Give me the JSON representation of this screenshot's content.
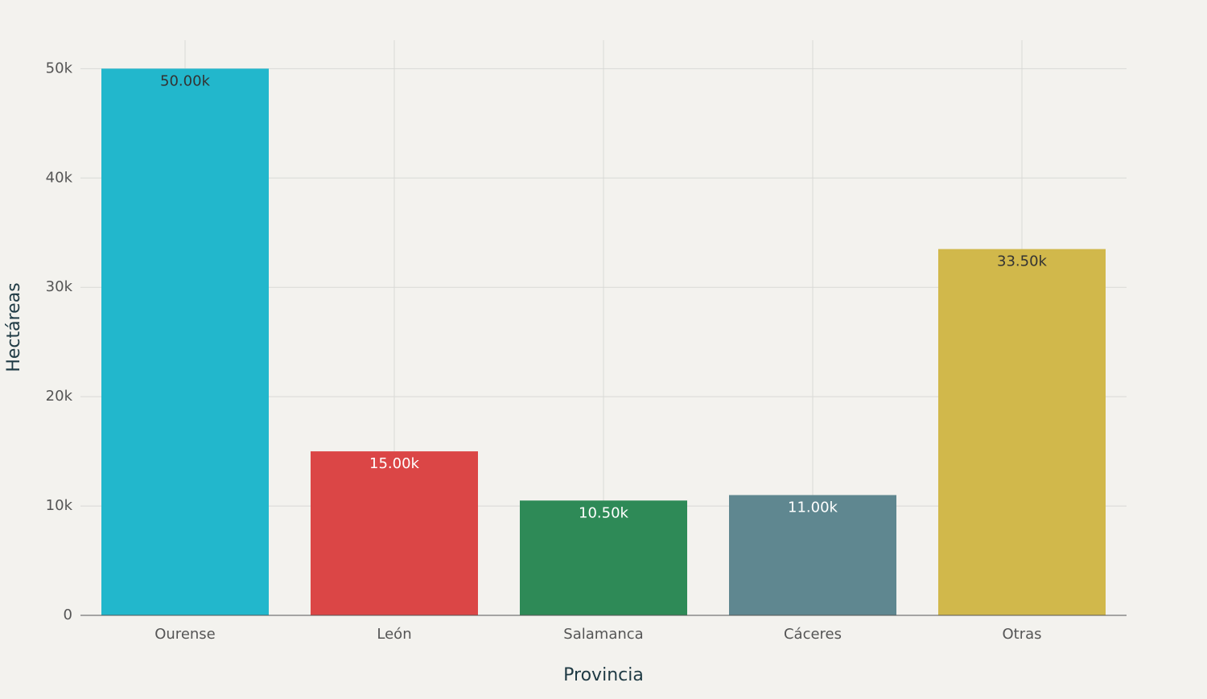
{
  "chart_data": {
    "type": "bar",
    "x_label": "Provincia",
    "y_label": "Hectáreas",
    "categories": [
      "Ourense",
      "León",
      "Salamanca",
      "Cáceres",
      "Otras"
    ],
    "values": [
      50000,
      15000,
      10500,
      11000,
      33500
    ],
    "value_labels": [
      "50.00k",
      "15.00k",
      "10.50k",
      "11.00k",
      "33.50k"
    ],
    "colors": [
      "#22b7cc",
      "#db4646",
      "#2e8a57",
      "#5f8790",
      "#d1b84b"
    ],
    "ylim": [
      0,
      52600
    ],
    "yticks": [
      0,
      {
        "value": 10000,
        "label": "10k"
      },
      {
        "value": 20000,
        "label": "20k"
      },
      {
        "value": 30000,
        "label": "30k"
      },
      {
        "value": 40000,
        "label": "40k"
      },
      {
        "value": 50000,
        "label": "50k"
      }
    ],
    "grid": true
  }
}
